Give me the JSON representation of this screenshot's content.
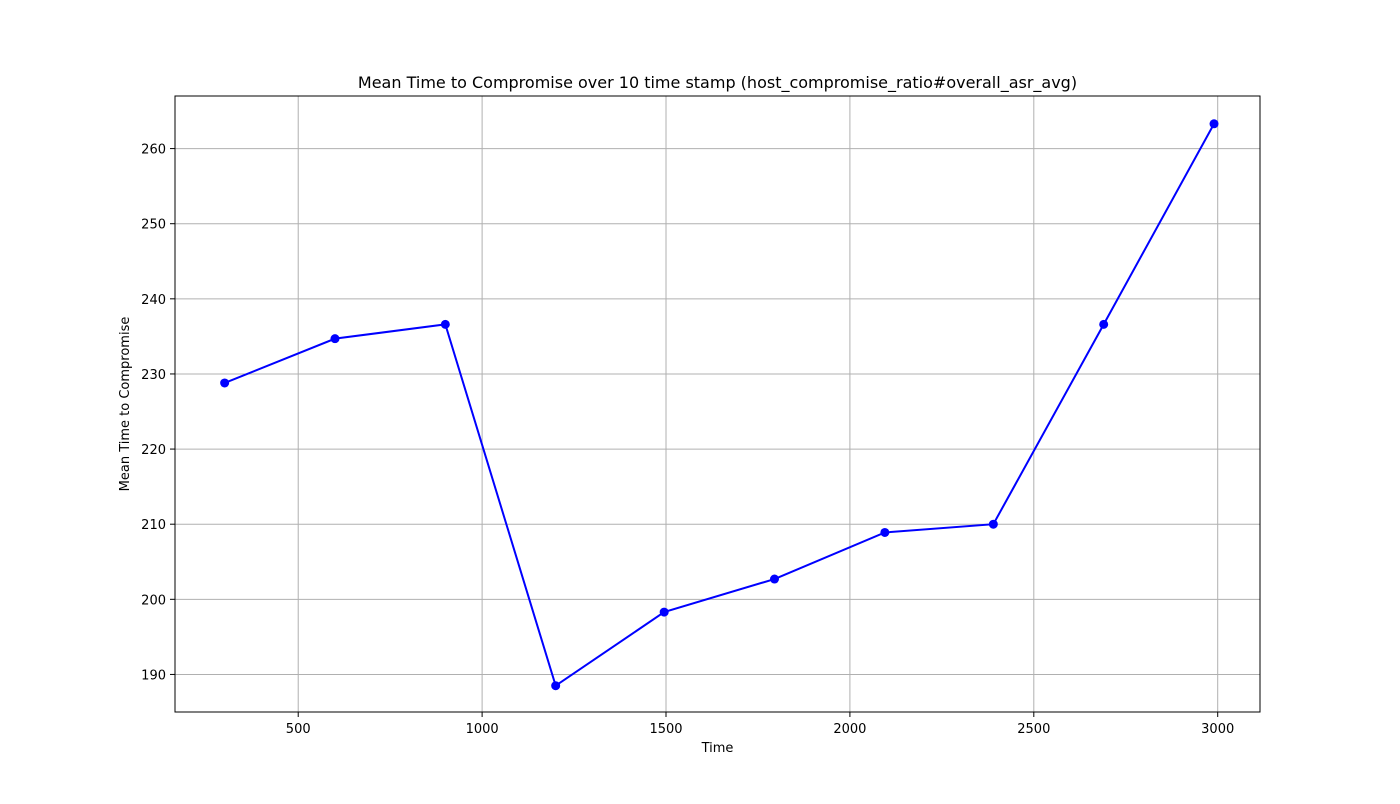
{
  "chart_data": {
    "type": "line",
    "title": "Mean Time to Compromise over 10 time stamp (host_compromise_ratio#overall_asr_avg)",
    "xlabel": "Time",
    "ylabel": "Mean Time to Compromise",
    "xlim": [
      165,
      3115
    ],
    "ylim": [
      185,
      267
    ],
    "xticks": [
      500,
      1000,
      1500,
      2000,
      2500,
      3000
    ],
    "yticks": [
      190,
      200,
      210,
      220,
      230,
      240,
      250,
      260
    ],
    "grid": true,
    "series": [
      {
        "color": "#0000ff",
        "marker": "circle",
        "x": [
          300,
          600,
          900,
          1200,
          1495,
          1795,
          2095,
          2390,
          2690,
          2990
        ],
        "y": [
          228.8,
          234.7,
          236.6,
          188.5,
          198.3,
          202.7,
          208.9,
          210.0,
          236.6,
          263.3
        ]
      }
    ]
  }
}
